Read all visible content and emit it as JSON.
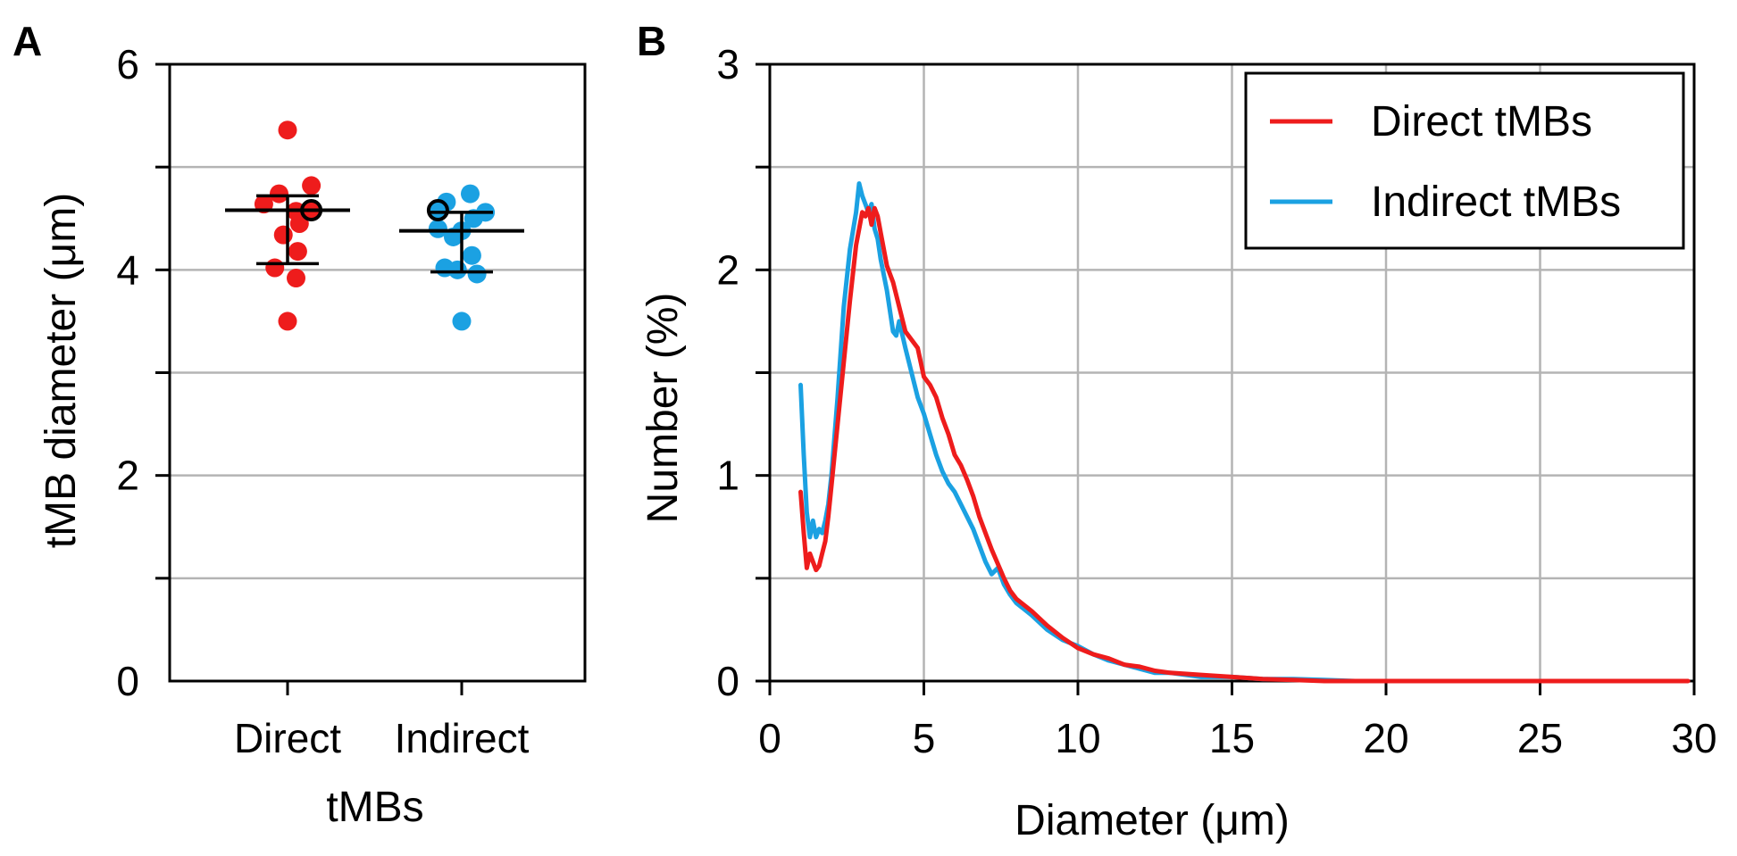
{
  "colors": {
    "direct": "#ee1c1c",
    "indirect": "#1ba1e2",
    "grid": "#b4b4b4",
    "axis": "#000000"
  },
  "chart_data": [
    {
      "panel_label": "A",
      "type": "scatter",
      "xlabel": "tMBs",
      "ylabel": "tMB diameter (μm)",
      "categories": [
        "Direct",
        "Indirect"
      ],
      "ylim": [
        0,
        6
      ],
      "yticks": [
        0,
        2,
        4,
        6
      ],
      "y_gridlines": [
        1,
        2,
        3,
        4,
        5,
        6
      ],
      "grid": true,
      "series": [
        {
          "name": "Direct",
          "color": "#ee1c1c",
          "values": [
            5.36,
            4.82,
            4.74,
            4.64,
            4.57,
            4.45,
            4.34,
            4.18,
            4.02,
            3.92,
            3.5,
            4.58
          ],
          "offsets": [
            0.0,
            0.28,
            -0.1,
            -0.28,
            0.1,
            0.14,
            -0.05,
            0.12,
            -0.15,
            0.1,
            0.0,
            0.28
          ],
          "highlight_index": 11,
          "mean": 4.58,
          "sd_upper": 4.72,
          "sd_lower": 4.06
        },
        {
          "name": "Indirect",
          "color": "#1ba1e2",
          "values": [
            4.74,
            4.66,
            4.56,
            4.5,
            4.4,
            4.38,
            4.32,
            4.14,
            4.02,
            4.0,
            3.96,
            3.5,
            4.58
          ],
          "offsets": [
            0.1,
            -0.18,
            0.28,
            0.14,
            -0.28,
            0.0,
            -0.1,
            0.12,
            -0.2,
            -0.05,
            0.18,
            0.0,
            -0.28
          ],
          "highlight_index": 12,
          "mean": 4.38,
          "sd_upper": 4.56,
          "sd_lower": 3.98
        }
      ]
    },
    {
      "panel_label": "B",
      "type": "line",
      "xlabel": "Diameter (μm)",
      "ylabel": "Number (%)",
      "xlim": [
        0,
        30
      ],
      "ylim": [
        0,
        3
      ],
      "xticks": [
        0,
        5,
        10,
        15,
        20,
        25,
        30
      ],
      "yticks": [
        0,
        1,
        2,
        3
      ],
      "x_gridlines": [
        5,
        10,
        15,
        20,
        25
      ],
      "y_gridlines": [
        0.5,
        1,
        1.5,
        2,
        2.5
      ],
      "grid": true,
      "legend_position": "top-right",
      "series": [
        {
          "name": "Direct tMBs",
          "color": "#ee1c1c",
          "x": [
            1.0,
            1.1,
            1.2,
            1.3,
            1.4,
            1.5,
            1.6,
            1.7,
            1.8,
            1.9,
            2.0,
            2.2,
            2.4,
            2.6,
            2.8,
            3.0,
            3.1,
            3.2,
            3.3,
            3.4,
            3.5,
            3.6,
            3.8,
            4.0,
            4.2,
            4.4,
            4.6,
            4.8,
            5.0,
            5.2,
            5.4,
            5.6,
            5.8,
            6.0,
            6.2,
            6.4,
            6.6,
            6.8,
            7.0,
            7.2,
            7.4,
            7.6,
            7.8,
            8.0,
            8.5,
            9.0,
            9.5,
            10.0,
            10.5,
            11.0,
            11.5,
            12.0,
            12.5,
            13.0,
            14.0,
            15.0,
            16.0,
            17.0,
            18.0,
            20.0,
            22.0,
            25.0,
            28.0,
            29.8
          ],
          "y": [
            0.92,
            0.72,
            0.55,
            0.62,
            0.58,
            0.54,
            0.56,
            0.62,
            0.68,
            0.8,
            0.95,
            1.25,
            1.55,
            1.85,
            2.12,
            2.28,
            2.26,
            2.3,
            2.22,
            2.3,
            2.26,
            2.18,
            2.02,
            1.94,
            1.82,
            1.7,
            1.66,
            1.62,
            1.48,
            1.44,
            1.38,
            1.28,
            1.2,
            1.1,
            1.05,
            0.98,
            0.9,
            0.8,
            0.72,
            0.64,
            0.57,
            0.5,
            0.44,
            0.4,
            0.34,
            0.27,
            0.21,
            0.16,
            0.13,
            0.11,
            0.08,
            0.07,
            0.05,
            0.04,
            0.03,
            0.02,
            0.01,
            0.005,
            0.0,
            0.0,
            0.0,
            0.0,
            0.0,
            0.0
          ]
        },
        {
          "name": "Indirect tMBs",
          "color": "#1ba1e2",
          "x": [
            1.0,
            1.1,
            1.2,
            1.3,
            1.4,
            1.5,
            1.6,
            1.7,
            1.8,
            1.9,
            2.0,
            2.2,
            2.4,
            2.6,
            2.8,
            2.9,
            3.0,
            3.1,
            3.2,
            3.3,
            3.4,
            3.5,
            3.6,
            3.8,
            4.0,
            4.1,
            4.2,
            4.4,
            4.6,
            4.8,
            5.0,
            5.2,
            5.4,
            5.6,
            5.8,
            6.0,
            6.2,
            6.4,
            6.6,
            6.8,
            7.0,
            7.2,
            7.4,
            7.6,
            7.8,
            8.0,
            8.5,
            9.0,
            9.5,
            10.0,
            10.5,
            11.0,
            11.5,
            12.0,
            12.5,
            13.0,
            14.0,
            15.0,
            16.0,
            17.0,
            18.0,
            19.0,
            20.0
          ],
          "y": [
            1.44,
            1.1,
            0.82,
            0.7,
            0.78,
            0.7,
            0.74,
            0.72,
            0.78,
            0.86,
            1.0,
            1.38,
            1.82,
            2.1,
            2.28,
            2.42,
            2.36,
            2.32,
            2.28,
            2.32,
            2.2,
            2.15,
            2.05,
            1.9,
            1.7,
            1.68,
            1.75,
            1.62,
            1.5,
            1.38,
            1.3,
            1.2,
            1.1,
            1.02,
            0.96,
            0.92,
            0.86,
            0.8,
            0.74,
            0.66,
            0.58,
            0.52,
            0.55,
            0.47,
            0.42,
            0.38,
            0.32,
            0.25,
            0.2,
            0.17,
            0.13,
            0.1,
            0.08,
            0.06,
            0.04,
            0.04,
            0.02,
            0.02,
            0.01,
            0.01,
            0.005,
            0.0,
            0.0
          ]
        }
      ]
    }
  ]
}
